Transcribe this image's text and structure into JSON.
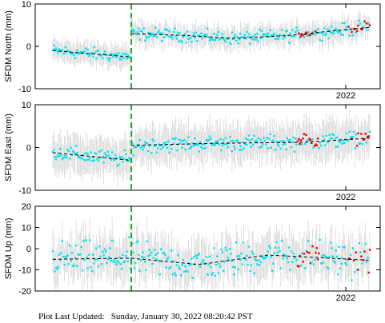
{
  "footer": {
    "label": "Plot Last Updated:",
    "timestamp": "Sunday, January 30, 2022 08:20:42 PST"
  },
  "colors": {
    "daily_points": "#00e5ee",
    "recent_points": "#ee0000",
    "error_bars": "#d9d9d9",
    "trend_line": "#000000",
    "event_line": "#22aa22"
  },
  "chart_data": [
    {
      "type": "scatter",
      "ylabel": "SFDM North (mm)",
      "ylim": [
        -10,
        10
      ],
      "yticks": [
        -10,
        0,
        10
      ],
      "x_tick_label": "2022",
      "event_offset_mm": 5.5,
      "trend_before": {
        "x": [
          0.0,
          0.3
        ],
        "y": [
          -1.0,
          -2.5
        ]
      },
      "trend_after": {
        "x": [
          0.3,
          0.45,
          0.6,
          0.75,
          1.0
        ],
        "y": [
          3.0,
          2.6,
          1.9,
          2.5,
          4.5
        ]
      },
      "scatter_amplitude_mm": 1.3,
      "error_bar_mm": 2.4,
      "red_segments": [
        [
          0.77,
          0.84
        ],
        [
          0.93,
          1.0
        ]
      ]
    },
    {
      "type": "scatter",
      "ylabel": "SFDM East (mm)",
      "ylim": [
        -10,
        10
      ],
      "yticks": [
        -10,
        0,
        10
      ],
      "x_tick_label": "2022",
      "event_offset_mm": 4.0,
      "trend_before": {
        "x": [
          0.0,
          0.3
        ],
        "y": [
          -1.2,
          -3.0
        ]
      },
      "trend_after": {
        "x": [
          0.3,
          0.55,
          0.8,
          1.0
        ],
        "y": [
          0.5,
          1.0,
          1.2,
          2.2
        ]
      },
      "scatter_amplitude_mm": 1.6,
      "error_bar_mm": 4.0,
      "red_segments": [
        [
          0.77,
          0.84
        ],
        [
          0.93,
          1.0
        ]
      ]
    },
    {
      "type": "scatter",
      "ylabel": "SFDM Up (mm)",
      "ylim": [
        -20,
        20
      ],
      "yticks": [
        -20,
        -10,
        0,
        10,
        20
      ],
      "x_tick_label": "2022",
      "event_offset_mm": 0.0,
      "trend_before": {
        "x": [
          0.0,
          0.3
        ],
        "y": [
          -5.0,
          -4.5
        ]
      },
      "trend_after": {
        "x": [
          0.3,
          0.5,
          0.7,
          1.0
        ],
        "y": [
          -4.5,
          -7.5,
          -3.0,
          -5.5
        ]
      },
      "scatter_amplitude_mm": 7.0,
      "error_bar_mm": 9.0,
      "red_segments": [
        [
          0.77,
          0.84
        ],
        [
          0.93,
          1.0
        ]
      ]
    }
  ]
}
